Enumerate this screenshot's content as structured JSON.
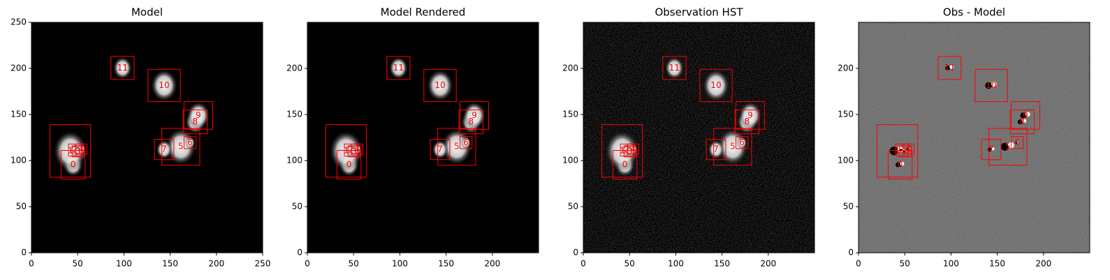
{
  "chart_data": [
    {
      "type": "image",
      "title": "Model",
      "background": "#000000",
      "noise": false,
      "xlim": [
        0,
        250
      ],
      "ylim": [
        0,
        250
      ],
      "xticks": [
        0,
        50,
        100,
        150,
        200,
        250
      ],
      "yticks": [
        0,
        50,
        100,
        150,
        200,
        250
      ],
      "boxes": [
        {
          "label": "0",
          "x0": 32,
          "x1": 58,
          "y0": 80,
          "y1": 111
        },
        {
          "label": "1",
          "x0": 20,
          "x1": 64,
          "y0": 82,
          "y1": 139
        },
        {
          "label": "2",
          "x0": 40,
          "x1": 54,
          "y0": 105,
          "y1": 118
        },
        {
          "label": "3",
          "x0": 44,
          "x1": 57,
          "y0": 104,
          "y1": 116
        },
        {
          "label": "4",
          "x0": 48,
          "x1": 60,
          "y0": 107,
          "y1": 118
        },
        {
          "label": "5",
          "x0": 141,
          "x1": 182,
          "y0": 95,
          "y1": 135
        },
        {
          "label": "6",
          "x0": 165,
          "x1": 178,
          "y0": 113,
          "y1": 126
        },
        {
          "label": "7",
          "x0": 133,
          "x1": 154,
          "y0": 101,
          "y1": 123
        },
        {
          "label": "8",
          "x0": 164,
          "x1": 190,
          "y0": 129,
          "y1": 155
        },
        {
          "label": "9",
          "x0": 165,
          "x1": 196,
          "y0": 134,
          "y1": 164
        },
        {
          "label": "10",
          "x0": 126,
          "x1": 161,
          "y0": 164,
          "y1": 199
        },
        {
          "label": "11",
          "x0": 86,
          "x1": 111,
          "y0": 188,
          "y1": 213
        }
      ]
    },
    {
      "type": "image",
      "title": "Model Rendered",
      "background": "#000000",
      "noise": false,
      "xlim": [
        0,
        250
      ],
      "ylim": [
        0,
        250
      ],
      "xticks": [
        0,
        50,
        100,
        150,
        200
      ],
      "yticks": [
        0,
        50,
        100,
        150,
        200
      ],
      "boxes": [
        {
          "label": "0",
          "x0": 32,
          "x1": 58,
          "y0": 80,
          "y1": 111
        },
        {
          "label": "1",
          "x0": 20,
          "x1": 64,
          "y0": 82,
          "y1": 139
        },
        {
          "label": "2",
          "x0": 40,
          "x1": 54,
          "y0": 105,
          "y1": 118
        },
        {
          "label": "3",
          "x0": 44,
          "x1": 57,
          "y0": 104,
          "y1": 116
        },
        {
          "label": "4",
          "x0": 48,
          "x1": 60,
          "y0": 107,
          "y1": 118
        },
        {
          "label": "5",
          "x0": 141,
          "x1": 182,
          "y0": 95,
          "y1": 135
        },
        {
          "label": "6",
          "x0": 165,
          "x1": 178,
          "y0": 113,
          "y1": 126
        },
        {
          "label": "7",
          "x0": 133,
          "x1": 154,
          "y0": 101,
          "y1": 123
        },
        {
          "label": "8",
          "x0": 164,
          "x1": 190,
          "y0": 129,
          "y1": 155
        },
        {
          "label": "9",
          "x0": 165,
          "x1": 196,
          "y0": 134,
          "y1": 164
        },
        {
          "label": "10",
          "x0": 126,
          "x1": 161,
          "y0": 164,
          "y1": 199
        },
        {
          "label": "11",
          "x0": 86,
          "x1": 111,
          "y0": 188,
          "y1": 213
        }
      ]
    },
    {
      "type": "image",
      "title": "Observation HST",
      "background": "#000000",
      "noise": true,
      "xlim": [
        0,
        250
      ],
      "ylim": [
        0,
        250
      ],
      "xticks": [
        0,
        50,
        100,
        150,
        200
      ],
      "yticks": [
        0,
        50,
        100,
        150,
        200
      ],
      "boxes": [
        {
          "label": "0",
          "x0": 32,
          "x1": 58,
          "y0": 80,
          "y1": 111
        },
        {
          "label": "1",
          "x0": 20,
          "x1": 64,
          "y0": 82,
          "y1": 139
        },
        {
          "label": "2",
          "x0": 40,
          "x1": 54,
          "y0": 105,
          "y1": 118
        },
        {
          "label": "3",
          "x0": 44,
          "x1": 57,
          "y0": 104,
          "y1": 116
        },
        {
          "label": "4",
          "x0": 48,
          "x1": 60,
          "y0": 107,
          "y1": 118
        },
        {
          "label": "5",
          "x0": 141,
          "x1": 182,
          "y0": 95,
          "y1": 135
        },
        {
          "label": "6",
          "x0": 165,
          "x1": 178,
          "y0": 113,
          "y1": 126
        },
        {
          "label": "7",
          "x0": 133,
          "x1": 154,
          "y0": 101,
          "y1": 123
        },
        {
          "label": "8",
          "x0": 164,
          "x1": 190,
          "y0": 129,
          "y1": 155
        },
        {
          "label": "9",
          "x0": 165,
          "x1": 196,
          "y0": 134,
          "y1": 164
        },
        {
          "label": "10",
          "x0": 126,
          "x1": 161,
          "y0": 164,
          "y1": 199
        },
        {
          "label": "11",
          "x0": 86,
          "x1": 111,
          "y0": 188,
          "y1": 213
        }
      ]
    },
    {
      "type": "image",
      "title": "Obs - Model",
      "background": "#6e6e6e",
      "noise": true,
      "xlim": [
        0,
        250
      ],
      "ylim": [
        0,
        250
      ],
      "xticks": [
        0,
        50,
        100,
        150,
        200
      ],
      "yticks": [
        0,
        50,
        100,
        150,
        200
      ],
      "boxes": [
        {
          "label": "0",
          "x0": 32,
          "x1": 58,
          "y0": 80,
          "y1": 111
        },
        {
          "label": "1",
          "x0": 20,
          "x1": 64,
          "y0": 82,
          "y1": 139
        },
        {
          "label": "2",
          "x0": 40,
          "x1": 54,
          "y0": 105,
          "y1": 118
        },
        {
          "label": "3",
          "x0": 44,
          "x1": 57,
          "y0": 104,
          "y1": 116
        },
        {
          "label": "4",
          "x0": 48,
          "x1": 60,
          "y0": 107,
          "y1": 118
        },
        {
          "label": "5",
          "x0": 141,
          "x1": 182,
          "y0": 95,
          "y1": 135
        },
        {
          "label": "6",
          "x0": 165,
          "x1": 178,
          "y0": 113,
          "y1": 126
        },
        {
          "label": "7",
          "x0": 133,
          "x1": 154,
          "y0": 101,
          "y1": 123
        },
        {
          "label": "8",
          "x0": 164,
          "x1": 190,
          "y0": 129,
          "y1": 155
        },
        {
          "label": "9",
          "x0": 165,
          "x1": 196,
          "y0": 134,
          "y1": 164
        },
        {
          "label": "10",
          "x0": 126,
          "x1": 161,
          "y0": 164,
          "y1": 199
        },
        {
          "label": "11",
          "x0": 86,
          "x1": 111,
          "y0": 188,
          "y1": 213
        }
      ]
    }
  ]
}
